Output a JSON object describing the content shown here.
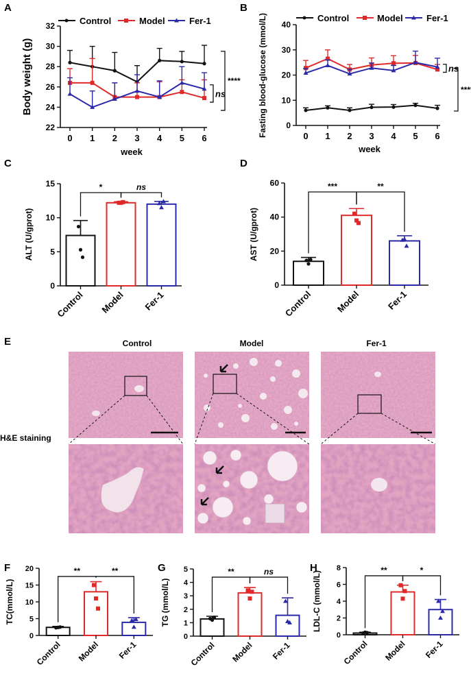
{
  "colors": {
    "control": "#111111",
    "model": "#e02a2a",
    "fer1": "#2a2aa8"
  },
  "panels": {
    "A": "A",
    "B": "B",
    "C": "C",
    "D": "D",
    "E": "E",
    "F": "F",
    "G": "G",
    "H": "H"
  },
  "legend": [
    "Control",
    "Model",
    "Fer-1"
  ],
  "he": {
    "staining_label": "H&E staining",
    "titles": [
      "Control",
      "Model",
      "Fer-1"
    ]
  },
  "chart_data": [
    {
      "id": "A",
      "type": "line",
      "xlabel": "week",
      "ylabel": "Body weight (g)",
      "x": [
        0,
        1,
        2,
        3,
        4,
        5,
        6
      ],
      "ylim": [
        22,
        32
      ],
      "yticks": [
        22,
        24,
        26,
        28,
        30,
        32
      ],
      "series": [
        {
          "name": "Control",
          "values": [
            28.4,
            28.0,
            27.6,
            26.5,
            28.6,
            28.5,
            28.3
          ],
          "err": [
            1.2,
            2.0,
            1.8,
            1.6,
            1.2,
            1.0,
            1.8
          ]
        },
        {
          "name": "Model",
          "values": [
            26.4,
            26.4,
            25.0,
            25.0,
            25.0,
            25.5,
            24.9
          ],
          "err": [
            1.4,
            2.4,
            1.4,
            1.4,
            1.5,
            1.2,
            1.8
          ]
        },
        {
          "name": "Fer-1",
          "values": [
            25.3,
            24.0,
            24.8,
            25.6,
            25.0,
            26.4,
            25.8
          ],
          "err": [
            1.6,
            1.6,
            1.6,
            1.6,
            1.6,
            1.6,
            1.6
          ]
        }
      ],
      "annotations": [
        {
          "text": "ns",
          "between": [
            "Model",
            "Fer-1"
          ]
        },
        {
          "text": "****",
          "between": [
            "Control",
            "Model"
          ]
        }
      ]
    },
    {
      "id": "B",
      "type": "line",
      "xlabel": "week",
      "ylabel": "Fasting blood-glucose (mmol/L)",
      "x": [
        0,
        1,
        2,
        3,
        4,
        5,
        6
      ],
      "ylim": [
        0,
        40
      ],
      "yticks": [
        0,
        10,
        20,
        30,
        40
      ],
      "series": [
        {
          "name": "Control",
          "values": [
            6.0,
            7.0,
            6.0,
            7.2,
            7.3,
            8.0,
            6.8
          ],
          "err": [
            1.0,
            0.8,
            1.0,
            1.2,
            1.0,
            0.8,
            1.2
          ]
        },
        {
          "name": "Model",
          "values": [
            22.8,
            26.5,
            22.2,
            24.0,
            24.7,
            24.8,
            22.2
          ],
          "err": [
            3.0,
            3.5,
            2.0,
            2.8,
            3.0,
            3.0,
            2.0
          ]
        },
        {
          "name": "Fer-1",
          "values": [
            20.8,
            23.8,
            20.5,
            22.8,
            21.8,
            25.0,
            23.2
          ],
          "err": [
            1.8,
            2.2,
            1.8,
            2.0,
            2.0,
            4.5,
            3.5
          ]
        }
      ],
      "annotations": [
        {
          "text": "ns",
          "between": [
            "Model",
            "Fer-1"
          ]
        },
        {
          "text": "****",
          "between": [
            "Control",
            "Model"
          ]
        }
      ]
    },
    {
      "id": "C",
      "type": "bar",
      "ylabel": "ALT (U/gprot)",
      "categories": [
        "Control",
        "Model",
        "Fer-1"
      ],
      "values": [
        7.4,
        12.2,
        12.0
      ],
      "err": [
        2.2,
        0.15,
        0.4
      ],
      "ylim": [
        0,
        15
      ],
      "yticks": [
        0,
        5,
        10,
        15
      ],
      "points": [
        [
          8.7,
          5.3,
          4.2
        ],
        [
          12.2,
          12.2,
          12.3
        ],
        [
          12.1,
          11.5,
          12.4
        ]
      ],
      "sig": [
        {
          "pair": [
            0,
            1
          ],
          "text": "*"
        },
        {
          "pair": [
            1,
            2
          ],
          "text": "ns"
        }
      ]
    },
    {
      "id": "D",
      "type": "bar",
      "ylabel": "AST (U/gprot)",
      "categories": [
        "Control",
        "Model",
        "Fer-1"
      ],
      "values": [
        14.0,
        41.0,
        26.0
      ],
      "err": [
        2.3,
        4.0,
        3.0
      ],
      "ylim": [
        0,
        60
      ],
      "yticks": [
        0,
        20,
        40,
        60
      ],
      "points": [
        [
          14.5,
          12.5,
          15.0
        ],
        [
          42.0,
          38.0,
          36.5
        ],
        [
          26.5,
          27.0,
          23.0
        ]
      ],
      "sig": [
        {
          "pair": [
            0,
            1
          ],
          "text": "***"
        },
        {
          "pair": [
            1,
            2
          ],
          "text": "**"
        }
      ]
    },
    {
      "id": "F",
      "type": "bar",
      "ylabel": "TC(mmol/L)",
      "categories": [
        "Control",
        "Model",
        "Fer-1"
      ],
      "values": [
        2.4,
        13.0,
        3.9
      ],
      "err": [
        0.3,
        3.0,
        1.4
      ],
      "ylim": [
        0,
        20
      ],
      "yticks": [
        0,
        5,
        10,
        15,
        20
      ],
      "points": [
        [
          2.3,
          2.4,
          2.5
        ],
        [
          15.0,
          11.0,
          8.0
        ],
        [
          4.5,
          2.5,
          4.8
        ]
      ],
      "sig": [
        {
          "pair": [
            0,
            1
          ],
          "text": "**"
        },
        {
          "pair": [
            1,
            2
          ],
          "text": "**"
        }
      ]
    },
    {
      "id": "G",
      "type": "bar",
      "ylabel": "TG (mmol/L)",
      "categories": [
        "Control",
        "Model",
        "Fer-1"
      ],
      "values": [
        1.28,
        3.22,
        1.55
      ],
      "err": [
        0.2,
        0.4,
        1.3
      ],
      "ylim": [
        0,
        5
      ],
      "yticks": [
        0,
        1,
        2,
        3,
        4,
        5
      ],
      "points": [
        [
          1.3,
          1.2,
          1.4
        ],
        [
          3.4,
          2.8,
          3.3
        ],
        [
          2.6,
          1.1,
          1.0
        ]
      ],
      "sig": [
        {
          "pair": [
            0,
            1
          ],
          "text": "**"
        },
        {
          "pair": [
            1,
            2
          ],
          "text": "ns"
        }
      ]
    },
    {
      "id": "H",
      "type": "bar",
      "ylabel": "LDL-C (mmol/L)",
      "categories": [
        "Control",
        "Model",
        "Fer-1"
      ],
      "values": [
        0.2,
        5.1,
        3.0
      ],
      "err": [
        0.1,
        0.8,
        1.2
      ],
      "ylim": [
        0,
        8
      ],
      "yticks": [
        0,
        2,
        4,
        6,
        8
      ],
      "points": [
        [
          0.2,
          0.3,
          0.25
        ],
        [
          5.9,
          4.3,
          5.2
        ],
        [
          4.0,
          2.0,
          2.8
        ]
      ],
      "sig": [
        {
          "pair": [
            0,
            1
          ],
          "text": "**"
        },
        {
          "pair": [
            1,
            2
          ],
          "text": "*"
        }
      ]
    }
  ]
}
